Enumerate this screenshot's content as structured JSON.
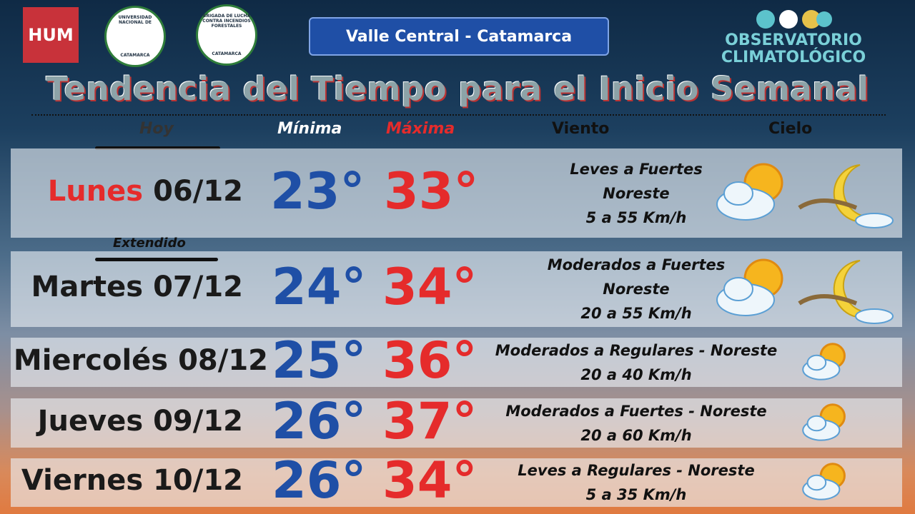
{
  "header": {
    "hum": "HUM",
    "logo1_top": "UNIVERSIDAD NACIONAL DE",
    "logo1_bottom": "CATAMARCA",
    "logo2_top": "BRIGADA DE LUCHA CONTRA INCENDIOS FORESTALES",
    "logo2_bottom": "CATAMARCA",
    "region": "Valle Central - Catamarca",
    "observatory_line1": "OBSERVATORIO",
    "observatory_line2": "CLIMATOLÓGICO",
    "title": "Tendencia del Tiempo para el Inicio Semanal"
  },
  "columns": {
    "today": "Hoy",
    "min": "Mínima",
    "max": "Máxima",
    "wind": "Viento",
    "sky": "Cielo",
    "extended": "Extendido"
  },
  "rows": [
    {
      "day": "Lunes",
      "date": "06/12",
      "min": "23°",
      "max": "33°",
      "wind": [
        "Leves a Fuertes",
        "Noreste",
        "5 a 55 Km/h"
      ]
    },
    {
      "day": "Martes",
      "date": "07/12",
      "min": "24°",
      "max": "34°",
      "wind": [
        "Moderados a Fuertes",
        "Noreste",
        "20 a 55 Km/h"
      ]
    },
    {
      "day": "Miercolés",
      "date": "08/12",
      "min": "25°",
      "max": "36°",
      "wind": [
        "Moderados a Regulares - Noreste",
        "20 a 40 Km/h"
      ]
    },
    {
      "day": "Jueves",
      "date": "09/12",
      "min": "26°",
      "max": "37°",
      "wind": [
        "Moderados a Fuertes - Noreste",
        "20 a 60 Km/h"
      ]
    },
    {
      "day": "Viernes",
      "date": "10/12",
      "min": "26°",
      "max": "34°",
      "wind": [
        "Leves a Regulares - Noreste",
        "5 a 35 Km/h"
      ]
    }
  ]
}
